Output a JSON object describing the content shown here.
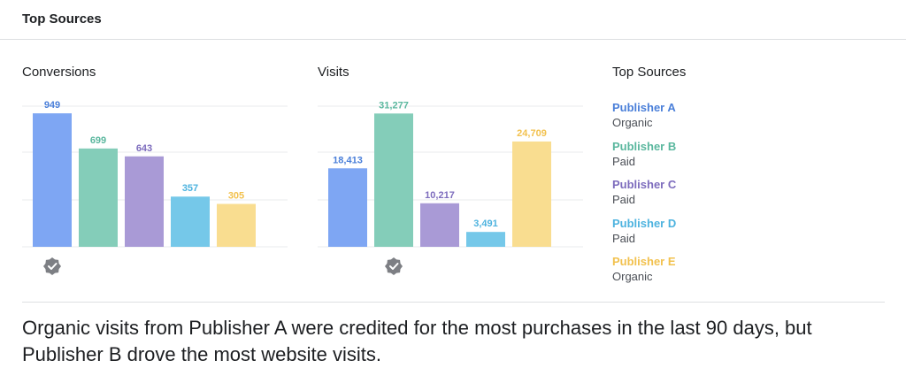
{
  "header": {
    "title": "Top Sources"
  },
  "chart_data": [
    {
      "type": "bar",
      "title": "Conversions",
      "categories": [
        "Publisher A",
        "Publisher B",
        "Publisher C",
        "Publisher D",
        "Publisher E"
      ],
      "values": [
        949,
        699,
        643,
        357,
        305
      ],
      "data_labels": [
        "949",
        "699",
        "643",
        "357",
        "305"
      ],
      "ylim": [
        0,
        1000
      ],
      "grid": true,
      "badge_icon": "verified-check-icon",
      "badge_category": "Publisher A"
    },
    {
      "type": "bar",
      "title": "Visits",
      "categories": [
        "Publisher A",
        "Publisher B",
        "Publisher C",
        "Publisher D",
        "Publisher E"
      ],
      "values": [
        18413,
        31277,
        10217,
        3491,
        24709
      ],
      "data_labels": [
        "18,413",
        "31,277",
        "10,217",
        "3,491",
        "24,709"
      ],
      "ylim": [
        0,
        33000
      ],
      "grid": true,
      "badge_icon": "verified-check-icon",
      "badge_category": "Publisher B"
    }
  ],
  "legend": {
    "title": "Top Sources",
    "items": [
      {
        "name": "Publisher A",
        "type": "Organic",
        "color": "#7ea6f3",
        "label_color": "#4a7fd9"
      },
      {
        "name": "Publisher B",
        "type": "Paid",
        "color": "#84cdb9",
        "label_color": "#5ab79e"
      },
      {
        "name": "Publisher C",
        "type": "Paid",
        "color": "#a99ad6",
        "label_color": "#7d6cbd"
      },
      {
        "name": "Publisher D",
        "type": "Paid",
        "color": "#75c8e9",
        "label_color": "#4db3df"
      },
      {
        "name": "Publisher E",
        "type": "Organic",
        "color": "#f9dd90",
        "label_color": "#f2c14e"
      }
    ]
  },
  "caption": "Organic visits from Publisher A were credited for the most purchases in the last 90 days, but Publisher B drove the most website visits."
}
